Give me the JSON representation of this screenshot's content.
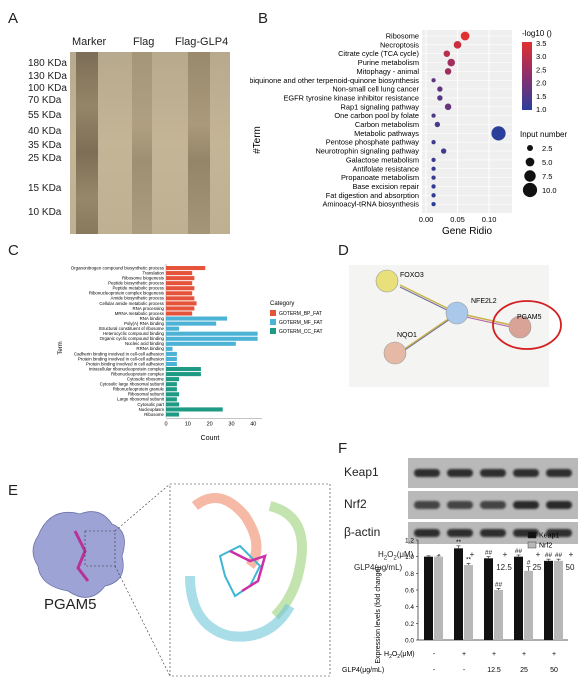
{
  "panels": {
    "a": {
      "letter": "A"
    },
    "b": {
      "letter": "B"
    },
    "c": {
      "letter": "C"
    },
    "d": {
      "letter": "D"
    },
    "e": {
      "letter": "E"
    },
    "f": {
      "letter": "F"
    }
  },
  "gel": {
    "lanes": [
      "Marker",
      "Flag",
      "Flag-GLP4"
    ],
    "markers": [
      "180 KDa",
      "130 KDa",
      "100 KDa",
      "70 KDa",
      "55 KDa",
      "40 KDa",
      "35 KDa",
      "25 KDa",
      "15 KDa",
      "10 KDa"
    ]
  },
  "chart_data": [
    {
      "type": "scatter",
      "panel": "B",
      "ylabel": "#Term",
      "xlabel": "Gene Ridio",
      "xticks": [
        "0.00",
        "0.05",
        "0.10"
      ],
      "xlim": [
        0,
        0.13
      ],
      "categories": [
        "Ribosome",
        "Necroptosis",
        "Citrate cycle (TCA cycle)",
        "Purine metabolism",
        "Mitophagy - animal",
        "Ubiquinone and other terpenoid-quinone biosynthesis",
        "Non-small cell lung cancer",
        "EGFR tyrosine kinase inhibitor resistance",
        "Rap1 signaling pathway",
        "One carbon pool by folate",
        "Carbon metabolism",
        "Metabolic pathways",
        "Pentose phosphate pathway",
        "Neurotrophin signaling pathway",
        "Galactose metabolism",
        "Antifolate resistance",
        "Propanoate metabolism",
        "Base excision repair",
        "Fat digestion and absorption",
        "Aminoacyl-tRNA biosynthesis"
      ],
      "gene_ratio": [
        0.062,
        0.05,
        0.033,
        0.04,
        0.035,
        0.012,
        0.022,
        0.022,
        0.035,
        0.012,
        0.018,
        0.115,
        0.012,
        0.028,
        0.012,
        0.012,
        0.012,
        0.012,
        0.012,
        0.012
      ],
      "neg_log10": [
        3.5,
        3.2,
        2.9,
        2.6,
        2.5,
        1.7,
        1.7,
        1.6,
        1.8,
        1.5,
        1.4,
        1.0,
        1.3,
        1.3,
        1.2,
        1.2,
        1.2,
        1.1,
        1.1,
        1.0
      ],
      "input_number": [
        5,
        4,
        3,
        4,
        3,
        1,
        2,
        2,
        3,
        1,
        2,
        10,
        1,
        2,
        1,
        1,
        1,
        1,
        1,
        1
      ],
      "color_legend_title": "-log10 ()",
      "color_ticks": [
        "3.5",
        "3.0",
        "2.5",
        "2.0",
        "1.5",
        "1.0"
      ],
      "size_legend_title": "Input number",
      "size_ticks": [
        "2.5",
        "5.0",
        "7.5",
        "10.0"
      ],
      "color_high": "#e03030",
      "color_low": "#2a3f9a"
    },
    {
      "type": "bar",
      "panel": "C",
      "orientation": "horizontal",
      "xlabel": "Count",
      "ylabel": "Term",
      "xticks": [
        "0",
        "10",
        "20",
        "30",
        "40"
      ],
      "xlim": [
        0,
        44
      ],
      "legend_title": "Category",
      "series": [
        {
          "name": "GOTERM_BP_FAT",
          "color": "#e5533b"
        },
        {
          "name": "GOTERM_MF_FAT",
          "color": "#4db3d6"
        },
        {
          "name": "GOTERM_CC_FAT",
          "color": "#1f9a84"
        }
      ],
      "bars": [
        {
          "label": "Organonitrogen compound biosynthetic process",
          "value": 18,
          "cat": 0
        },
        {
          "label": "Translation",
          "value": 12,
          "cat": 0
        },
        {
          "label": "Ribosome biogenesis",
          "value": 13,
          "cat": 0
        },
        {
          "label": "Peptide biosynthetic process",
          "value": 12,
          "cat": 0
        },
        {
          "label": "Peptide metabolic process",
          "value": 13,
          "cat": 0
        },
        {
          "label": "Ribonucleoprotein complex biogenesis",
          "value": 12,
          "cat": 0
        },
        {
          "label": "Amide biosynthetic process",
          "value": 13,
          "cat": 0
        },
        {
          "label": "Cellular amide metabolic process",
          "value": 14,
          "cat": 0
        },
        {
          "label": "RNA processing",
          "value": 13,
          "cat": 0
        },
        {
          "label": "MRNA metabolic process",
          "value": 12,
          "cat": 0
        },
        {
          "label": "RNA binding",
          "value": 28,
          "cat": 1
        },
        {
          "label": "Poly(A) RNA binding",
          "value": 23,
          "cat": 1
        },
        {
          "label": "Structural constituent of ribosome",
          "value": 6,
          "cat": 1
        },
        {
          "label": "Heterocyclic compound binding",
          "value": 42,
          "cat": 1
        },
        {
          "label": "Organic cyclic compound binding",
          "value": 42,
          "cat": 1
        },
        {
          "label": "Nucleic acid binding",
          "value": 32,
          "cat": 1
        },
        {
          "label": "RRNA binding",
          "value": 3,
          "cat": 1
        },
        {
          "label": "Cadherin binding involved in cell-cell adhesion",
          "value": 5,
          "cat": 1
        },
        {
          "label": "Protein binding involved in cell-cell adhesion",
          "value": 5,
          "cat": 1
        },
        {
          "label": "Protein binding involved in cell adhesion",
          "value": 5,
          "cat": 1
        },
        {
          "label": "Intracellular ribonucleoprotein complex",
          "value": 16,
          "cat": 2
        },
        {
          "label": "Ribonucleoprotein complex",
          "value": 16,
          "cat": 2
        },
        {
          "label": "Cytosolic ribosome",
          "value": 6,
          "cat": 2
        },
        {
          "label": "Cytosolic large ribosomal subunit",
          "value": 5,
          "cat": 2
        },
        {
          "label": "Ribonucleoprotein granule",
          "value": 5,
          "cat": 2
        },
        {
          "label": "Ribosomal subunit",
          "value": 6,
          "cat": 2
        },
        {
          "label": "Large ribosomal subunit",
          "value": 5,
          "cat": 2
        },
        {
          "label": "Cytosolic part",
          "value": 6,
          "cat": 2
        },
        {
          "label": "Nucleoplasm",
          "value": 26,
          "cat": 2
        },
        {
          "label": "Ribosome",
          "value": 6,
          "cat": 2
        }
      ]
    },
    {
      "type": "bar",
      "panel": "F",
      "ylabel": "Expression levels (fold change)",
      "ylim": [
        0,
        1.2
      ],
      "yticks": [
        "0.0",
        "0.2",
        "0.4",
        "0.6",
        "0.8",
        "1.0",
        "1.2"
      ],
      "groups": 5,
      "series": [
        {
          "name": "Keap1",
          "color": "#111111",
          "values": [
            1.0,
            1.1,
            0.98,
            1.0,
            0.95
          ],
          "errors": [
            0.01,
            0.03,
            0.02,
            0.02,
            0.02
          ]
        },
        {
          "name": "Nrf2",
          "color": "#b8b8b8",
          "values": [
            1.0,
            0.9,
            0.6,
            0.83,
            0.95
          ],
          "errors": [
            0.01,
            0.02,
            0.02,
            0.05,
            0.02
          ]
        }
      ],
      "annotations": [
        {
          "group": 1,
          "series": 0,
          "text": "**"
        },
        {
          "group": 1,
          "series": 1,
          "text": "**"
        },
        {
          "group": 2,
          "series": 0,
          "text": "##"
        },
        {
          "group": 2,
          "series": 1,
          "text": "##"
        },
        {
          "group": 3,
          "series": 0,
          "text": "##"
        },
        {
          "group": 3,
          "series": 1,
          "text": "#"
        },
        {
          "group": 4,
          "series": 0,
          "text": "##"
        },
        {
          "group": 4,
          "series": 1,
          "text": "##"
        }
      ]
    }
  ],
  "network": {
    "nodes": [
      "FOXO3",
      "NFE2L2",
      "NQO1",
      "PGAM5"
    ]
  },
  "docking": {
    "protein_label": "PGAM5"
  },
  "western": {
    "bands": [
      "Keap1",
      "Nrf2",
      "β-actin"
    ],
    "h2o2_label_prefix": "H",
    "h2o2_label_sub1": "2",
    "h2o2_label_mid": "O",
    "h2o2_label_sub2": "2",
    "h2o2_label_suffix": "(μM)",
    "h2o2": [
      "-",
      "+",
      "+",
      "+",
      "+"
    ],
    "glp4_label": "GLP4(μg/mL)",
    "glp4": [
      "-",
      "-",
      "12.5",
      "25",
      "50"
    ]
  }
}
